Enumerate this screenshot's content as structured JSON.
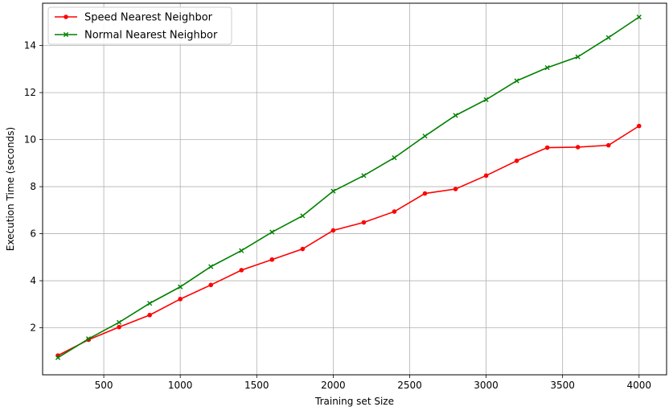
{
  "chart_data": {
    "type": "line",
    "xlabel": "Training set Size",
    "ylabel": "Execution Time (seconds)",
    "xlim": [
      100,
      4180
    ],
    "ylim": [
      0.0,
      15.8
    ],
    "xticks": [
      500,
      1000,
      1500,
      2000,
      2500,
      3000,
      3500,
      4000
    ],
    "yticks": [
      2,
      4,
      6,
      8,
      10,
      12,
      14
    ],
    "grid": true,
    "legend_position": "top-left",
    "x": [
      200,
      400,
      600,
      800,
      1000,
      1200,
      1400,
      1600,
      1800,
      2000,
      2200,
      2400,
      2600,
      2800,
      3000,
      3200,
      3400,
      3600,
      3800,
      4000
    ],
    "series": [
      {
        "name": "Speed Nearest Neighbor",
        "color": "#ff0000",
        "marker": "dot",
        "values": [
          0.82,
          1.49,
          2.03,
          2.54,
          3.22,
          3.82,
          4.45,
          4.9,
          5.35,
          6.14,
          6.48,
          6.94,
          7.71,
          7.9,
          8.47,
          9.1,
          9.66,
          9.68,
          9.76,
          10.58
        ]
      },
      {
        "name": "Normal Nearest Neighbor",
        "color": "#008000",
        "marker": "x",
        "values": [
          0.73,
          1.53,
          2.23,
          3.04,
          3.74,
          4.6,
          5.28,
          6.07,
          6.76,
          7.81,
          8.47,
          9.23,
          10.15,
          11.03,
          11.7,
          12.5,
          13.06,
          13.52,
          14.34,
          15.21
        ]
      }
    ]
  }
}
